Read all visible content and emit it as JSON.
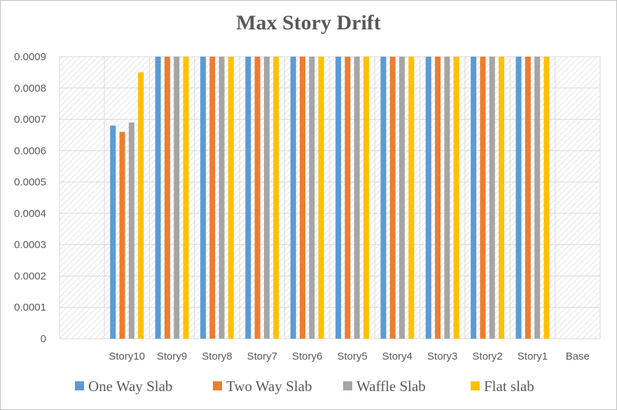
{
  "chart_data": {
    "type": "bar",
    "title": "Max Story Drift",
    "xlabel": "",
    "ylabel": "",
    "categories": [
      "Story10",
      "Story9",
      "Story8",
      "Story7",
      "Story6",
      "Story5",
      "Story4",
      "Story3",
      "Story2",
      "Story1",
      "Base"
    ],
    "ylim": [
      0,
      0.0009
    ],
    "yticks": [
      "0",
      "0.0001",
      "0.0002",
      "0.0003",
      "0.0004",
      "0.0005",
      "0.0006",
      "0.0007",
      "0.0008",
      "0.0009"
    ],
    "grid": true,
    "legend_position": "bottom",
    "series": [
      {
        "name": "One Way Slab",
        "color": "#5B9BD5",
        "values": [
          0.00068,
          0.0009,
          0.0009,
          0.0009,
          0.0009,
          0.0009,
          0.0009,
          0.0009,
          0.0009,
          0.0009,
          0
        ]
      },
      {
        "name": "Two Way Slab",
        "color": "#ED7D31",
        "values": [
          0.00066,
          0.0009,
          0.0009,
          0.0009,
          0.0009,
          0.0009,
          0.0009,
          0.0009,
          0.0009,
          0.0009,
          0
        ]
      },
      {
        "name": "Waffle Slab",
        "color": "#A5A5A5",
        "values": [
          0.00069,
          0.0009,
          0.0009,
          0.0009,
          0.0009,
          0.0009,
          0.0009,
          0.0009,
          0.0009,
          0.0009,
          0
        ]
      },
      {
        "name": "Flat slab",
        "color": "#FFC000",
        "values": [
          0.00085,
          0.0009,
          0.0009,
          0.0009,
          0.0009,
          0.0009,
          0.0009,
          0.0009,
          0.0009,
          0.0009,
          0
        ]
      }
    ]
  }
}
